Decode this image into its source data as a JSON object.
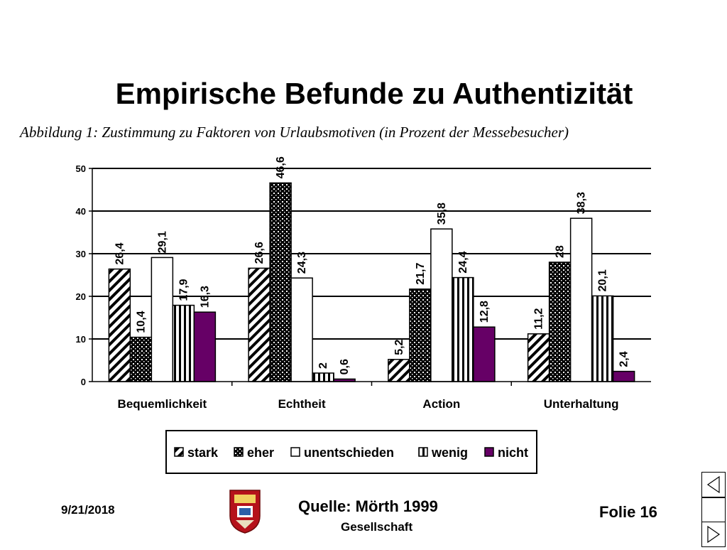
{
  "slide": {
    "title": "Empirische Befunde zu Authentizität",
    "caption": "Abbildung 1: Zustimmung zu Faktoren von Urlaubsmotiven (in Prozent der Messebesucher)",
    "date": "9/21/2018",
    "source": "Quelle: Mörth 1999",
    "source_sub": "Gesellschaft",
    "folie": "Folie 16",
    "crest_icon": "coat-of-arms-icon",
    "nav_icons": [
      "nav-prev-triangle-icon",
      "nav-blank-icon",
      "nav-next-triangle-icon"
    ]
  },
  "chart_data": {
    "type": "bar",
    "categories": [
      "Bequemlichkeit",
      "Echtheit",
      "Action",
      "Unterhaltung"
    ],
    "series": [
      {
        "name": "stark",
        "pattern": "diagonal-stripes",
        "color": "#000000",
        "values": [
          "26,4",
          "26,6",
          "5,2",
          "11,2"
        ]
      },
      {
        "name": "eher",
        "pattern": "dots",
        "color": "#000000",
        "values": [
          "10,4",
          "46,6",
          "21,7",
          "28"
        ]
      },
      {
        "name": "unentschieden",
        "pattern": "solid",
        "color": "#ffffff",
        "values": [
          "29,1",
          "24,3",
          "35,8",
          "38,3"
        ]
      },
      {
        "name": "wenig",
        "pattern": "vertical-stripes",
        "color": "#000000",
        "values": [
          "17,9",
          "2",
          "24,4",
          "20,1"
        ]
      },
      {
        "name": "nicht",
        "pattern": "solid",
        "color": "#660066",
        "values": [
          "16,3",
          "0,6",
          "12,8",
          "2,4"
        ]
      }
    ],
    "y_ticks": [
      "0",
      "10",
      "20",
      "30",
      "40",
      "50"
    ],
    "ylim": [
      0,
      50
    ],
    "grid": true,
    "legend_position": "bottom"
  }
}
